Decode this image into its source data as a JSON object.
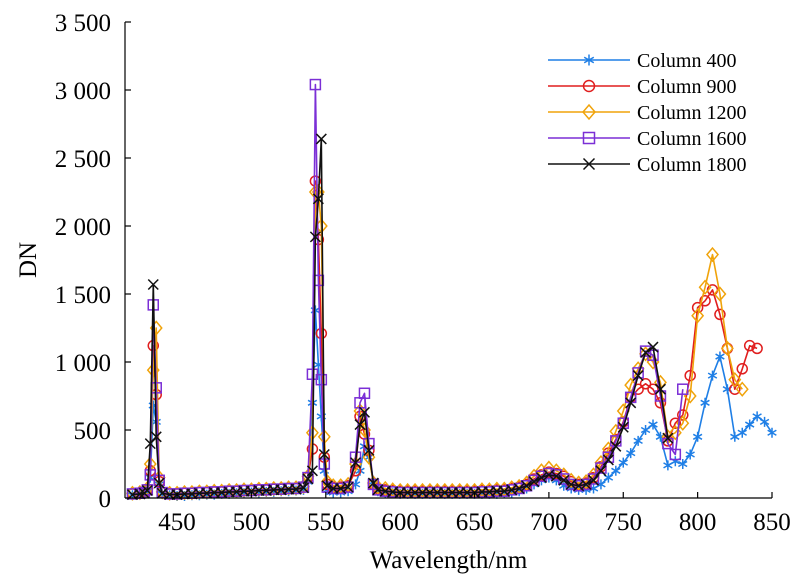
{
  "chart_data": {
    "type": "line",
    "title": "",
    "xlabel": "Wavelength/nm",
    "ylabel": "DN",
    "xlim": [
      415,
      850
    ],
    "ylim": [
      0,
      3500
    ],
    "xticks": [
      450,
      500,
      550,
      600,
      650,
      700,
      750,
      800,
      850
    ],
    "yticks": [
      0,
      500,
      1000,
      1500,
      2000,
      2500,
      3000,
      3500
    ],
    "xtick_labels": [
      "450",
      "500",
      "550",
      "600",
      "650",
      "700",
      "750",
      "800",
      "850"
    ],
    "ytick_labels": [
      "0",
      "500",
      "1 000",
      "1 500",
      "2 000",
      "2 500",
      "3 000",
      "3 500"
    ],
    "grid": false,
    "legend_position": "top-right",
    "series": [
      {
        "name": "Column 400",
        "color": "#1f7fe6",
        "marker": "asterisk",
        "x": [
          420,
          425,
          428,
          430,
          432,
          434,
          436,
          438,
          440,
          445,
          450,
          455,
          460,
          465,
          470,
          475,
          480,
          485,
          490,
          495,
          500,
          505,
          510,
          515,
          520,
          525,
          530,
          535,
          538,
          541,
          543,
          545,
          547,
          549,
          551,
          555,
          560,
          565,
          570,
          573,
          576,
          579,
          582,
          585,
          590,
          595,
          600,
          605,
          610,
          615,
          620,
          625,
          630,
          635,
          640,
          645,
          650,
          655,
          660,
          665,
          670,
          675,
          680,
          685,
          690,
          695,
          700,
          705,
          710,
          715,
          720,
          725,
          730,
          735,
          740,
          745,
          750,
          755,
          760,
          765,
          770,
          775,
          780,
          785,
          790,
          795,
          800,
          805,
          810,
          815,
          820,
          825,
          830,
          835,
          840,
          845,
          850
        ],
        "y": [
          20,
          25,
          30,
          50,
          150,
          680,
          560,
          100,
          30,
          20,
          15,
          15,
          20,
          20,
          25,
          25,
          30,
          30,
          35,
          35,
          40,
          40,
          45,
          45,
          50,
          50,
          55,
          60,
          120,
          700,
          1380,
          980,
          600,
          200,
          60,
          40,
          40,
          50,
          100,
          200,
          380,
          300,
          120,
          50,
          40,
          35,
          30,
          30,
          30,
          30,
          30,
          30,
          30,
          30,
          30,
          30,
          30,
          30,
          30,
          30,
          35,
          40,
          50,
          70,
          100,
          130,
          150,
          130,
          90,
          70,
          60,
          60,
          70,
          100,
          150,
          200,
          260,
          330,
          420,
          500,
          540,
          450,
          240,
          270,
          250,
          320,
          450,
          700,
          900,
          1040,
          800,
          450,
          480,
          540,
          600,
          560,
          480
        ]
      },
      {
        "name": "Column 900",
        "color": "#e01e1e",
        "marker": "circle",
        "x": [
          420,
          425,
          428,
          430,
          432,
          434,
          436,
          438,
          440,
          445,
          450,
          455,
          460,
          465,
          470,
          475,
          480,
          485,
          490,
          495,
          500,
          505,
          510,
          515,
          520,
          525,
          530,
          535,
          538,
          541,
          543,
          545,
          547,
          549,
          551,
          555,
          560,
          565,
          570,
          573,
          576,
          579,
          582,
          585,
          590,
          595,
          600,
          605,
          610,
          615,
          620,
          625,
          630,
          635,
          640,
          645,
          650,
          655,
          660,
          665,
          670,
          675,
          680,
          685,
          690,
          695,
          700,
          705,
          710,
          715,
          720,
          725,
          730,
          735,
          740,
          745,
          750,
          755,
          760,
          765,
          770,
          775,
          780,
          785,
          790,
          795,
          800,
          805,
          810,
          815,
          820,
          825,
          830,
          835,
          840
        ],
        "y": [
          30,
          35,
          40,
          60,
          200,
          1120,
          760,
          120,
          40,
          30,
          30,
          35,
          35,
          40,
          40,
          45,
          45,
          50,
          50,
          55,
          55,
          60,
          60,
          65,
          65,
          70,
          70,
          80,
          150,
          360,
          2330,
          1900,
          1210,
          300,
          100,
          80,
          80,
          90,
          200,
          600,
          470,
          350,
          100,
          70,
          60,
          55,
          50,
          50,
          50,
          50,
          50,
          50,
          50,
          50,
          50,
          50,
          50,
          55,
          55,
          60,
          60,
          70,
          80,
          100,
          140,
          170,
          190,
          180,
          160,
          120,
          100,
          110,
          150,
          230,
          330,
          430,
          560,
          740,
          800,
          840,
          800,
          700,
          420,
          550,
          610,
          900,
          1400,
          1450,
          1530,
          1350,
          1100,
          800,
          950,
          1120,
          1100
        ]
      },
      {
        "name": "Column 1200",
        "color": "#f0a30a",
        "marker": "diamond",
        "x": [
          420,
          425,
          428,
          430,
          432,
          434,
          436,
          438,
          440,
          445,
          450,
          455,
          460,
          465,
          470,
          475,
          480,
          485,
          490,
          495,
          500,
          505,
          510,
          515,
          520,
          525,
          530,
          535,
          538,
          541,
          543,
          545,
          547,
          549,
          551,
          555,
          560,
          565,
          570,
          573,
          576,
          579,
          582,
          585,
          590,
          595,
          600,
          605,
          610,
          615,
          620,
          625,
          630,
          635,
          640,
          645,
          650,
          655,
          660,
          665,
          670,
          675,
          680,
          685,
          690,
          695,
          700,
          705,
          710,
          715,
          720,
          725,
          730,
          735,
          740,
          745,
          750,
          755,
          760,
          765,
          770,
          775,
          780,
          785,
          790,
          795,
          800,
          805,
          810,
          815,
          820,
          825,
          830
        ],
        "y": [
          35,
          40,
          45,
          70,
          250,
          940,
          1250,
          150,
          45,
          35,
          35,
          40,
          40,
          45,
          45,
          50,
          50,
          55,
          55,
          60,
          60,
          65,
          65,
          70,
          70,
          75,
          75,
          85,
          160,
          480,
          2250,
          2250,
          2000,
          450,
          120,
          90,
          90,
          100,
          250,
          640,
          500,
          300,
          110,
          80,
          70,
          60,
          55,
          55,
          55,
          55,
          55,
          55,
          55,
          55,
          55,
          55,
          55,
          60,
          60,
          65,
          65,
          75,
          85,
          110,
          160,
          200,
          220,
          200,
          170,
          130,
          110,
          120,
          170,
          260,
          360,
          490,
          640,
          830,
          950,
          1060,
          1000,
          850,
          450,
          480,
          550,
          750,
          1340,
          1550,
          1790,
          1500,
          1100,
          870,
          800
        ]
      },
      {
        "name": "Column 1600",
        "color": "#7b2fd6",
        "marker": "square",
        "x": [
          420,
          425,
          428,
          430,
          432,
          434,
          436,
          438,
          440,
          445,
          450,
          455,
          460,
          465,
          470,
          475,
          480,
          485,
          490,
          495,
          500,
          505,
          510,
          515,
          520,
          525,
          530,
          535,
          538,
          541,
          543,
          545,
          547,
          549,
          551,
          555,
          560,
          565,
          570,
          573,
          576,
          579,
          582,
          585,
          590,
          595,
          600,
          605,
          610,
          615,
          620,
          625,
          630,
          635,
          640,
          645,
          650,
          655,
          660,
          665,
          670,
          675,
          680,
          685,
          690,
          695,
          700,
          705,
          710,
          715,
          720,
          725,
          730,
          735,
          740,
          745,
          750,
          755,
          760,
          765,
          770,
          775,
          780,
          785,
          790
        ],
        "y": [
          30,
          35,
          40,
          60,
          170,
          1420,
          810,
          130,
          40,
          30,
          30,
          35,
          35,
          40,
          40,
          45,
          45,
          50,
          50,
          55,
          55,
          60,
          60,
          65,
          65,
          70,
          70,
          80,
          150,
          910,
          3040,
          1600,
          870,
          250,
          80,
          70,
          70,
          80,
          300,
          700,
          770,
          400,
          100,
          60,
          50,
          45,
          40,
          40,
          40,
          40,
          40,
          40,
          40,
          40,
          40,
          40,
          40,
          45,
          45,
          50,
          50,
          60,
          70,
          90,
          130,
          160,
          180,
          170,
          140,
          100,
          90,
          100,
          140,
          220,
          300,
          420,
          550,
          740,
          920,
          1080,
          1050,
          750,
          400,
          320,
          800
        ]
      },
      {
        "name": "Column 1800",
        "color": "#111111",
        "marker": "x",
        "x": [
          420,
          425,
          428,
          430,
          432,
          434,
          436,
          438,
          440,
          445,
          450,
          455,
          460,
          465,
          470,
          475,
          480,
          485,
          490,
          495,
          500,
          505,
          510,
          515,
          520,
          525,
          530,
          535,
          538,
          541,
          543,
          545,
          547,
          549,
          551,
          555,
          560,
          565,
          570,
          573,
          576,
          579,
          582,
          585,
          590,
          595,
          600,
          605,
          610,
          615,
          620,
          625,
          630,
          635,
          640,
          645,
          650,
          655,
          660,
          665,
          670,
          675,
          680,
          685,
          690,
          695,
          700,
          705,
          710,
          715,
          720,
          725,
          730,
          735,
          740,
          745,
          750,
          755,
          760,
          765,
          770,
          775,
          780
        ],
        "y": [
          25,
          30,
          35,
          55,
          400,
          1570,
          450,
          110,
          35,
          25,
          25,
          30,
          30,
          35,
          35,
          40,
          40,
          45,
          45,
          50,
          50,
          55,
          55,
          60,
          60,
          65,
          65,
          75,
          140,
          200,
          1920,
          2200,
          2640,
          320,
          90,
          70,
          70,
          80,
          260,
          540,
          630,
          350,
          110,
          60,
          50,
          45,
          40,
          40,
          40,
          40,
          40,
          40,
          40,
          40,
          40,
          40,
          40,
          45,
          45,
          50,
          50,
          60,
          70,
          90,
          120,
          150,
          170,
          160,
          130,
          100,
          90,
          100,
          130,
          200,
          280,
          380,
          520,
          700,
          900,
          1070,
          1110,
          800,
          440
        ]
      }
    ]
  }
}
